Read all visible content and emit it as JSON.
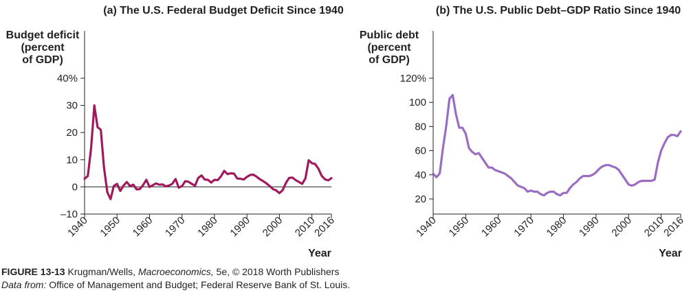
{
  "figure": {
    "label": "FIGURE 13-13",
    "credit_pre": " Krugman/Wells, ",
    "credit_book": "Macroeconomics,",
    "credit_post": " 5e, © 2018 Worth Publishers",
    "source_label": "Data from:",
    "source_text": " Office of Management and Budget; Federal Reserve Bank of St. Louis."
  },
  "colors": {
    "deficit_line": "#a0195c",
    "debt_line": "#9a6cc4",
    "axis": "#231f20"
  },
  "chart_data": [
    {
      "type": "line",
      "title": "(a) The U.S. Federal Budget Deficit Since 1940",
      "ylabel": [
        "Budget deficit",
        "(percent",
        "of GDP)"
      ],
      "xlabel": "Year",
      "xlim": [
        1940,
        2016
      ],
      "ylim": [
        -10,
        40
      ],
      "yticks": [
        -10,
        0,
        10,
        20,
        30,
        40
      ],
      "ytick_labels": [
        "–10",
        "0",
        "10",
        "20",
        "30",
        "40%"
      ],
      "xticks": [
        1940,
        1950,
        1960,
        1970,
        1980,
        1990,
        2000,
        2010,
        2016
      ],
      "zero_line": true,
      "series": [
        {
          "color": "#a0195c",
          "x": [
            1940,
            1941,
            1942,
            1943,
            1944,
            1945,
            1946,
            1947,
            1948,
            1949,
            1950,
            1951,
            1952,
            1953,
            1954,
            1955,
            1956,
            1957,
            1958,
            1959,
            1960,
            1961,
            1962,
            1963,
            1964,
            1965,
            1966,
            1967,
            1968,
            1969,
            1970,
            1971,
            1972,
            1973,
            1974,
            1975,
            1976,
            1977,
            1978,
            1979,
            1980,
            1981,
            1982,
            1983,
            1984,
            1985,
            1986,
            1987,
            1988,
            1989,
            1990,
            1991,
            1992,
            1993,
            1994,
            1995,
            1996,
            1997,
            1998,
            1999,
            2000,
            2001,
            2002,
            2003,
            2004,
            2005,
            2006,
            2007,
            2008,
            2009,
            2010,
            2011,
            2012,
            2013,
            2014,
            2015,
            2016
          ],
          "y": [
            3,
            4,
            14,
            30,
            22,
            21,
            7,
            -2,
            -4.5,
            0.3,
            1.1,
            -1.5,
            0.5,
            1.8,
            0.3,
            0.8,
            -0.9,
            -0.8,
            0.6,
            2.6,
            0,
            0.6,
            1.3,
            0.8,
            0.9,
            0.2,
            0.5,
            1.1,
            2.9,
            -0.3,
            0.3,
            2.1,
            1.9,
            1.1,
            0.4,
            3.3,
            4.2,
            2.7,
            2.6,
            1.6,
            2.6,
            2.5,
            3.9,
            5.9,
            4.7,
            5.0,
            4.9,
            3.1,
            3.0,
            2.7,
            3.7,
            4.4,
            4.5,
            3.7,
            2.8,
            2.1,
            1.3,
            0.3,
            -0.8,
            -1.3,
            -2.3,
            -1.2,
            1.5,
            3.3,
            3.4,
            2.5,
            1.8,
            1.1,
            3.1,
            9.8,
            8.7,
            8.4,
            6.7,
            4.1,
            2.8,
            2.4,
            3.2
          ]
        }
      ]
    },
    {
      "type": "line",
      "title": "(b) The U.S. Public Debt–GDP Ratio Since 1940",
      "ylabel": [
        "Public debt",
        "(percent",
        "of GDP)"
      ],
      "xlabel": "Year",
      "xlim": [
        1940,
        2016
      ],
      "ylim": [
        20,
        120
      ],
      "yticks": [
        20,
        40,
        60,
        80,
        100,
        120
      ],
      "ytick_labels": [
        "20",
        "40",
        "60",
        "80",
        "100",
        "120%"
      ],
      "xticks": [
        1940,
        1950,
        1960,
        1970,
        1980,
        1990,
        2000,
        2010,
        2016
      ],
      "series": [
        {
          "color": "#9a6cc4",
          "x": [
            1940,
            1941,
            1942,
            1943,
            1944,
            1945,
            1946,
            1947,
            1948,
            1949,
            1950,
            1951,
            1952,
            1953,
            1954,
            1955,
            1956,
            1957,
            1958,
            1959,
            1960,
            1961,
            1962,
            1963,
            1964,
            1965,
            1966,
            1967,
            1968,
            1969,
            1970,
            1971,
            1972,
            1973,
            1974,
            1975,
            1976,
            1977,
            1978,
            1979,
            1980,
            1981,
            1982,
            1983,
            1984,
            1985,
            1986,
            1987,
            1988,
            1989,
            1990,
            1991,
            1992,
            1993,
            1994,
            1995,
            1996,
            1997,
            1998,
            1999,
            2000,
            2001,
            2002,
            2003,
            2004,
            2005,
            2006,
            2007,
            2008,
            2009,
            2010,
            2011,
            2012,
            2013,
            2014,
            2015,
            2016
          ],
          "y": [
            41,
            38,
            41,
            62,
            80,
            103,
            106,
            90,
            79,
            79,
            74,
            62,
            59,
            57,
            58,
            54,
            50,
            46,
            46,
            44,
            43,
            42,
            41,
            39,
            37,
            34,
            31,
            30,
            29,
            26,
            27,
            26,
            26,
            24,
            23,
            25,
            26,
            26,
            24,
            23,
            25,
            25,
            29,
            32,
            34,
            37,
            39,
            39,
            39,
            40,
            42,
            45,
            47,
            48,
            48,
            47,
            46,
            44,
            40,
            36,
            32,
            31,
            32,
            34,
            35,
            35,
            35,
            35,
            36,
            50,
            60,
            66,
            71,
            73,
            73,
            72,
            76
          ]
        }
      ]
    }
  ]
}
